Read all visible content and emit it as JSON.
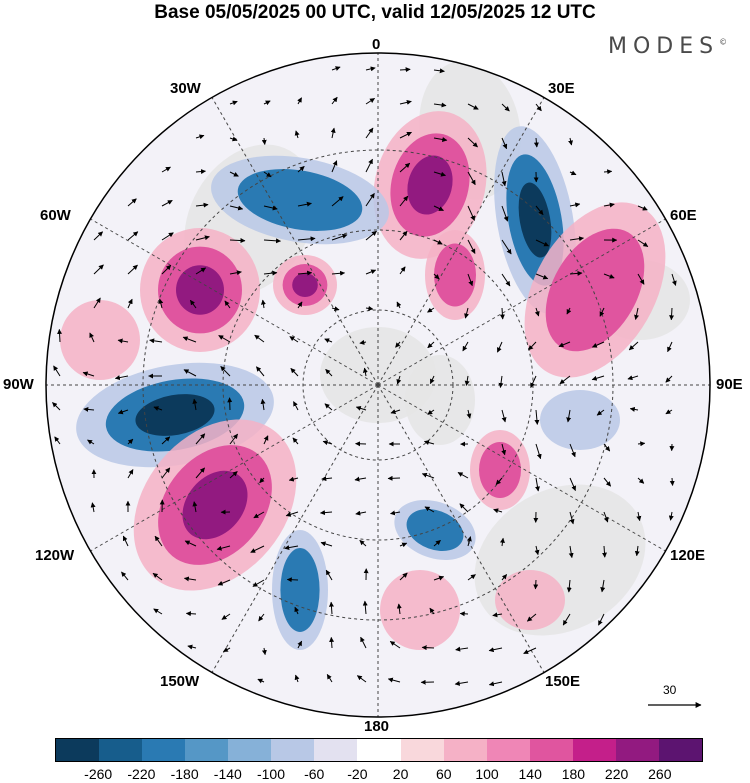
{
  "title": "Base 05/05/2025 00 UTC, valid 12/05/2025 12 UTC",
  "logo": "MODES",
  "logo_mark": "©",
  "longitude_labels": {
    "lon_0": "0",
    "lon_30e": "30E",
    "lon_60e": "60E",
    "lon_90e": "90E",
    "lon_120e": "120E",
    "lon_150e": "150E",
    "lon_180": "180",
    "lon_150w": "150W",
    "lon_120w": "120W",
    "lon_90w": "90W",
    "lon_60w": "60W",
    "lon_30w": "30W"
  },
  "reference_vector": "30",
  "colorbar": {
    "colors": [
      "#0c3a5c",
      "#175d8c",
      "#2a7ab3",
      "#5597c6",
      "#86b1d8",
      "#b8c8e6",
      "#e3e1f0",
      "#ffffff",
      "#f9d8dc",
      "#f5b1c6",
      "#ef86b6",
      "#e0559f",
      "#c41f8a",
      "#921a80",
      "#5c1470"
    ],
    "ticks": [
      "-260",
      "-220",
      "-180",
      "-140",
      "-100",
      "-60",
      "-20",
      "20",
      "60",
      "100",
      "140",
      "180",
      "220",
      "260"
    ]
  },
  "anomaly_palette": {
    "neg_strong": "#0c3a5c",
    "neg_mid": "#2a7ab3",
    "neg_weak": "#b8c8e6",
    "pos_weak": "#f5b1c6",
    "pos_mid": "#e0559f",
    "pos_strong": "#921a80",
    "land": "#e6e6e6"
  }
}
